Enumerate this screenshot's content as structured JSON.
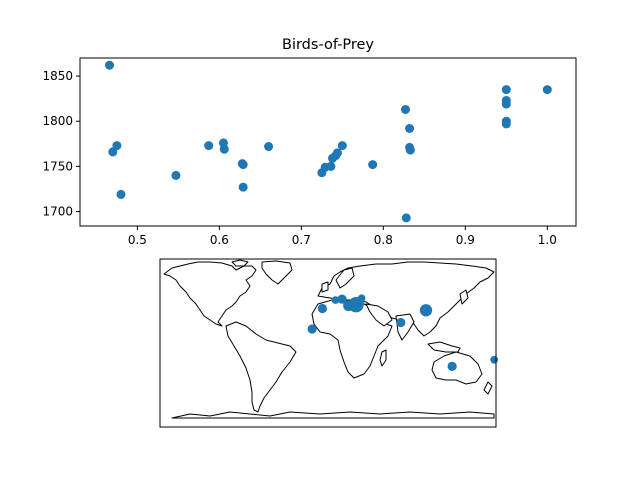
{
  "chart_data": [
    {
      "type": "scatter",
      "title": "Birds-of-Prey",
      "xlabel": "",
      "ylabel": "",
      "xlim": [
        0.43,
        1.035
      ],
      "ylim": [
        1684,
        1870
      ],
      "xticks": [
        0.5,
        0.6,
        0.7,
        0.8,
        0.9,
        1.0
      ],
      "xtick_labels": [
        "0.5",
        "0.6",
        "0.7",
        "0.8",
        "0.9",
        "1.0"
      ],
      "yticks": [
        1700,
        1750,
        1800,
        1850
      ],
      "ytick_labels": [
        "1700",
        "1750",
        "1800",
        "1850"
      ],
      "grid": false,
      "marker_color": "#1f77b4",
      "points": [
        {
          "x": 0.466,
          "y": 1862
        },
        {
          "x": 0.47,
          "y": 1766
        },
        {
          "x": 0.475,
          "y": 1773
        },
        {
          "x": 0.48,
          "y": 1719
        },
        {
          "x": 0.547,
          "y": 1740
        },
        {
          "x": 0.587,
          "y": 1773
        },
        {
          "x": 0.605,
          "y": 1776
        },
        {
          "x": 0.606,
          "y": 1769
        },
        {
          "x": 0.628,
          "y": 1753
        },
        {
          "x": 0.629,
          "y": 1752
        },
        {
          "x": 0.629,
          "y": 1727
        },
        {
          "x": 0.66,
          "y": 1772
        },
        {
          "x": 0.725,
          "y": 1743
        },
        {
          "x": 0.729,
          "y": 1749
        },
        {
          "x": 0.736,
          "y": 1750
        },
        {
          "x": 0.738,
          "y": 1759
        },
        {
          "x": 0.742,
          "y": 1762
        },
        {
          "x": 0.744,
          "y": 1765
        },
        {
          "x": 0.75,
          "y": 1773
        },
        {
          "x": 0.787,
          "y": 1752
        },
        {
          "x": 0.827,
          "y": 1813
        },
        {
          "x": 0.828,
          "y": 1693
        },
        {
          "x": 0.832,
          "y": 1792
        },
        {
          "x": 0.832,
          "y": 1771
        },
        {
          "x": 0.833,
          "y": 1768
        },
        {
          "x": 0.95,
          "y": 1835
        },
        {
          "x": 0.95,
          "y": 1823
        },
        {
          "x": 0.95,
          "y": 1819
        },
        {
          "x": 0.95,
          "y": 1800
        },
        {
          "x": 0.95,
          "y": 1797
        },
        {
          "x": 1.0,
          "y": 1835
        }
      ]
    },
    {
      "type": "scatter",
      "subtype": "map",
      "title": "",
      "projection": "plate-carree",
      "lon_range": [
        -180,
        180
      ],
      "lat_range": [
        -90,
        90
      ],
      "grid": false,
      "marker_color": "#1f77b4",
      "points": [
        {
          "lon": -6,
          "lat": 37,
          "size": 6
        },
        {
          "lon": -17,
          "lat": 15,
          "size": 6
        },
        {
          "lon": 8,
          "lat": 46,
          "size": 5
        },
        {
          "lon": 15,
          "lat": 47,
          "size": 6
        },
        {
          "lon": 22,
          "lat": 40,
          "size": 7
        },
        {
          "lon": 30,
          "lat": 41,
          "size": 10
        },
        {
          "lon": 36,
          "lat": 48,
          "size": 5
        },
        {
          "lon": 78,
          "lat": 22,
          "size": 6
        },
        {
          "lon": 105,
          "lat": 35,
          "size": 8
        },
        {
          "lon": 133,
          "lat": -25,
          "size": 6
        },
        {
          "lon": 178,
          "lat": -18,
          "size": 5
        }
      ]
    }
  ]
}
